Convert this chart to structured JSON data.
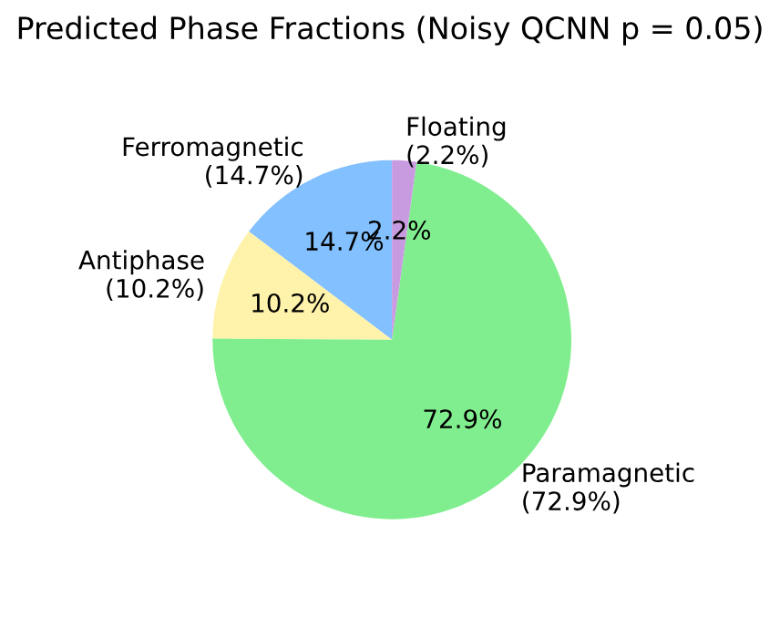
{
  "chart_data": {
    "type": "pie",
    "title": "Predicted Phase Fractions (Noisy QCNN p = 0.05)",
    "categories": [
      "Ferromagnetic\n(14.7%)",
      "Antiphase\n(10.2%)",
      "Paramagnetic\n(72.9%)",
      "Floating\n(2.2%)"
    ],
    "values": [
      14.7,
      10.2,
      72.9,
      2.2
    ],
    "value_labels": [
      "14.7%",
      "10.2%",
      "72.9%",
      "2.2%"
    ],
    "colors": [
      "#82c0ff",
      "#fff2aa",
      "#80ee8f",
      "#c89be0"
    ]
  }
}
